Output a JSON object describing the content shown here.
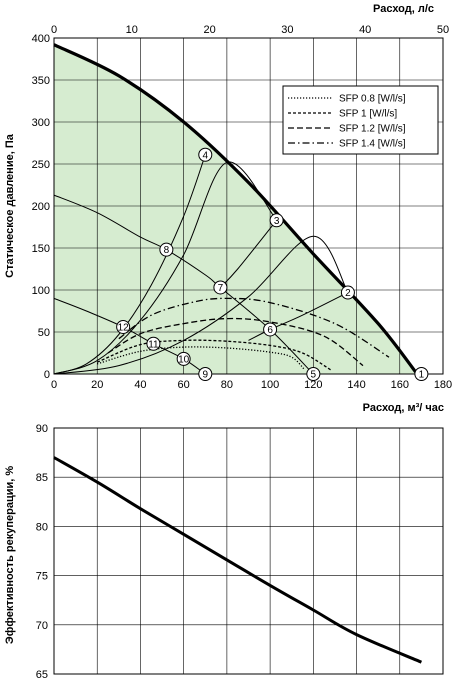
{
  "chart_data": [
    {
      "type": "line",
      "xlabel": "Расход, м³/ час",
      "x2label": "Расход, л/с",
      "ylabel": "Статическое давление, Па",
      "xlim": [
        0,
        180
      ],
      "x2lim": [
        0,
        50
      ],
      "ylim": [
        0,
        400
      ],
      "xticks": [
        "0",
        "20",
        "40",
        "60",
        "80",
        "100",
        "120",
        "140",
        "160",
        "180"
      ],
      "x2ticks": [
        "0",
        "10",
        "20",
        "30",
        "40",
        "50"
      ],
      "yticks": [
        "0",
        "50",
        "100",
        "150",
        "200",
        "250",
        "300",
        "350",
        "400"
      ],
      "grid": true,
      "legend_position": "top-right",
      "max_curve": [
        [
          0,
          392
        ],
        [
          30,
          355
        ],
        [
          60,
          300
        ],
        [
          90,
          228
        ],
        [
          120,
          143
        ],
        [
          150,
          60
        ],
        [
          168,
          0
        ]
      ],
      "sfp_series": [
        {
          "name": "SFP 0.8 [W/l/s]",
          "style": "dotted",
          "points": [
            [
              20,
              12
            ],
            [
              40,
              27
            ],
            [
              60,
              32
            ],
            [
              80,
              31
            ],
            [
              100,
              26
            ],
            [
              110,
              20
            ],
            [
              116,
              5
            ]
          ]
        },
        {
          "name": "SFP 1 [W/l/s]",
          "style": "densely-dashed",
          "points": [
            [
              20,
              14
            ],
            [
              40,
              35
            ],
            [
              60,
              40
            ],
            [
              80,
              39
            ],
            [
              100,
              34
            ],
            [
              115,
              25
            ],
            [
              128,
              5
            ]
          ]
        },
        {
          "name": "SFP 1.2 [W/l/s]",
          "style": "dashed",
          "points": [
            [
              25,
              25
            ],
            [
              40,
              48
            ],
            [
              60,
              60
            ],
            [
              80,
              66
            ],
            [
              100,
              62
            ],
            [
              125,
              45
            ],
            [
              143,
              10
            ]
          ]
        },
        {
          "name": "SFP 1.4 [W/l/s]",
          "style": "dash-dot",
          "points": [
            [
              30,
              42
            ],
            [
              45,
              70
            ],
            [
              65,
              86
            ],
            [
              80,
              90
            ],
            [
              100,
              85
            ],
            [
              130,
              60
            ],
            [
              155,
              20
            ]
          ]
        }
      ],
      "working_points": [
        {
          "label": "1",
          "x": 170,
          "y": 0
        },
        {
          "label": "2",
          "x": 136,
          "y": 97
        },
        {
          "label": "3",
          "x": 103,
          "y": 183
        },
        {
          "label": "4",
          "x": 70,
          "y": 261
        },
        {
          "label": "5",
          "x": 120,
          "y": 0
        },
        {
          "label": "6",
          "x": 100,
          "y": 53
        },
        {
          "label": "7",
          "x": 77,
          "y": 103
        },
        {
          "label": "8",
          "x": 52,
          "y": 148
        },
        {
          "label": "9",
          "x": 70,
          "y": 0
        },
        {
          "label": "10",
          "x": 60,
          "y": 18
        },
        {
          "label": "11",
          "x": 46,
          "y": 36
        },
        {
          "label": "12",
          "x": 32,
          "y": 56
        }
      ],
      "system_curves": [
        [
          [
            0,
            0
          ],
          [
            15,
            12
          ],
          [
            30,
            47
          ],
          [
            45,
            106
          ],
          [
            60,
            188
          ],
          [
            70,
            261
          ]
        ],
        [
          [
            0,
            0
          ],
          [
            20,
            16
          ],
          [
            40,
            64
          ],
          [
            60,
            142
          ],
          [
            80,
            252
          ],
          [
            103,
            183
          ]
        ],
        [
          [
            0,
            0
          ],
          [
            30,
            10
          ],
          [
            60,
            40
          ],
          [
            90,
            92
          ],
          [
            120,
            164
          ],
          [
            136,
            97
          ]
        ]
      ],
      "fan_curves": [
        [
          [
            0,
            213
          ],
          [
            20,
            192
          ],
          [
            40,
            163
          ],
          [
            52,
            148
          ],
          [
            70,
            118
          ],
          [
            77,
            103
          ],
          [
            100,
            53
          ],
          [
            120,
            0
          ]
        ],
        [
          [
            0,
            90
          ],
          [
            15,
            75
          ],
          [
            32,
            56
          ],
          [
            46,
            36
          ],
          [
            60,
            18
          ],
          [
            70,
            0
          ]
        ]
      ]
    },
    {
      "type": "line",
      "xlabel": "",
      "ylabel": "Эффективность рекуперации, %",
      "xlim": [
        0,
        180
      ],
      "ylim": [
        65,
        90
      ],
      "yticks": [
        "65",
        "70",
        "75",
        "80",
        "85",
        "90"
      ],
      "grid": true,
      "series": [
        {
          "x": [
            0,
            20,
            40,
            60,
            80,
            100,
            120,
            140,
            170
          ],
          "values": [
            87,
            84.5,
            81.8,
            79.2,
            76.6,
            74,
            71.5,
            69,
            66.2
          ]
        }
      ]
    }
  ],
  "colors": {
    "area_fill": "#d6ecd0",
    "line": "#000000",
    "grid": "#000000"
  }
}
